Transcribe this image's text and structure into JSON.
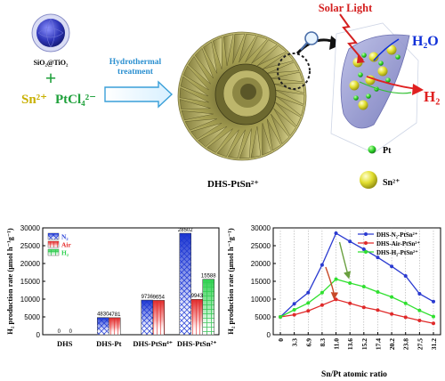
{
  "scheme": {
    "precursor_label": "SiO₂@TiO₂",
    "plus_sign": "+",
    "sn_ion": "Sn²⁺",
    "pt_salt": "PtCl₄²⁻",
    "arrow_label_line1": "Hydrothermal",
    "arrow_label_line2": "treatment",
    "product_label": "DHS-PtSn²⁺",
    "light_label": "Solar Light",
    "water_label": "H₂O",
    "hydrogen_label": "H₂",
    "legend_pt": "Pt",
    "legend_sn": "Sn²⁺",
    "colors": {
      "shell": "#a9a35a",
      "sphere": "#3640c0",
      "sn_yellow": "#e3e032",
      "pt_green": "#2fd12c",
      "arrow_red": "#e02020",
      "water_blue": "#1030d8"
    }
  },
  "chart_data": [
    {
      "type": "bar",
      "ylabel": "H₂ production rate (μmol h⁻¹g⁻¹)",
      "ylim": [
        0,
        30000
      ],
      "yticks": [
        "0",
        "5000",
        "10000",
        "15000",
        "20000",
        "25000",
        "30000"
      ],
      "categories": [
        "DHS",
        "DHS-Pt",
        "DHS-PtSn⁴⁺",
        "DHS-PtSn²⁺"
      ],
      "legend_position": "top-left",
      "series": [
        {
          "name": "N₂",
          "color": "#2b44d8",
          "values": [
            0,
            4830,
            9736,
            28502
          ]
        },
        {
          "name": "Air",
          "color": "#e63030",
          "values": [
            0,
            4781,
            9654,
            9943
          ]
        },
        {
          "name": "H₂",
          "color": "#30d050",
          "values": [
            null,
            null,
            null,
            15588
          ]
        }
      ],
      "value_labels": [
        [
          "0",
          "4830",
          "9736",
          "28502"
        ],
        [
          "0",
          "4781",
          "9654",
          "9943"
        ],
        [
          "",
          "",
          "",
          "15588"
        ]
      ]
    },
    {
      "type": "line",
      "xlabel": "Sn/Pt atomic ratio",
      "ylabel": "H₂ production rate (μmol h⁻¹g⁻¹)",
      "x_ticks": [
        "0",
        "3.3",
        "6.9",
        "8.3",
        "11.0",
        "13.6",
        "15.2",
        "17.4",
        "20.2",
        "23.8",
        "27.5",
        "31.2"
      ],
      "ylim": [
        0,
        30000
      ],
      "yticks": [
        "0",
        "5000",
        "10000",
        "15000",
        "20000",
        "25000",
        "30000"
      ],
      "grid": "vertical dotted",
      "legend_position": "top-right",
      "series": [
        {
          "name": "DHS-N₂-PtSn²⁺",
          "color": "#2a3ad0",
          "values": [
            5000,
            8700,
            11800,
            19600,
            28500,
            26200,
            24000,
            21700,
            19200,
            16500,
            11500,
            9300
          ]
        },
        {
          "name": "DHS-Air-PtSn²⁺",
          "color": "#e02a2a",
          "values": [
            5000,
            5600,
            6700,
            8300,
            9900,
            8800,
            7700,
            6900,
            5800,
            4900,
            4000,
            3200
          ]
        },
        {
          "name": "DHS-H₂-PtSn²⁺",
          "color": "#30e030",
          "values": [
            5000,
            7000,
            8900,
            11800,
            15600,
            14500,
            13500,
            12000,
            10600,
            8800,
            6800,
            5100
          ]
        }
      ],
      "annotations": [
        "red curved arrow from N₂ curve to Air curve near x=11.0",
        "green curved arrow from N₂ curve to H₂ curve near x=11.0"
      ]
    }
  ]
}
